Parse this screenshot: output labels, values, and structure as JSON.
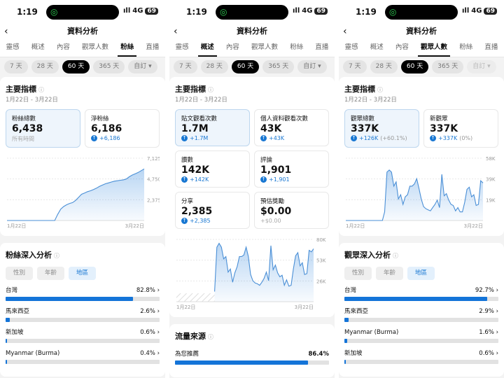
{
  "colors": {
    "accent": "#1474d8",
    "selected_card": "#eef5fc",
    "island_icon": "#2ecc52"
  },
  "panels": [
    {
      "status": {
        "time": "1:19",
        "network": "4G",
        "battery": "69"
      },
      "header": {
        "title": "資料分析",
        "back_icon": "chevron-left-icon"
      },
      "tabs": [
        "靈感",
        "概述",
        "內容",
        "觀眾人數",
        "粉絲",
        "直播"
      ],
      "active_tab": 4,
      "ranges": [
        "7 天",
        "28 天",
        "60 天",
        "365 天",
        "自訂 ▾"
      ],
      "active_range": 2,
      "custom_disabled": false,
      "metrics": {
        "title": "主要指標",
        "date": "1月22日 - 3月22日",
        "cards": [
          {
            "label": "粉絲總數",
            "value": "6,438",
            "note": "所有時間",
            "selected": true
          },
          {
            "label": "淨粉絲",
            "value": "6,186",
            "change": "+6,186"
          }
        ]
      },
      "chart_index": 0,
      "second": {
        "title": "粉絲深入分析",
        "filters": [
          "性別",
          "年齡",
          "地區"
        ],
        "active_filter": 2,
        "rows": [
          {
            "label": "台灣",
            "pct": "82.8%",
            "value": 82.8
          },
          {
            "label": "馬來西亞",
            "pct": "2.6%",
            "value": 2.6
          },
          {
            "label": "新加坡",
            "pct": "0.6%",
            "value": 0.6
          },
          {
            "label": "Myanmar (Burma)",
            "pct": "0.4%",
            "value": 0.4
          }
        ],
        "chevrons": true
      }
    },
    {
      "status": {
        "time": "1:19",
        "network": "4G",
        "battery": "69"
      },
      "header": {
        "title": "資料分析",
        "back_icon": "chevron-left-icon"
      },
      "tabs": [
        "靈感",
        "概述",
        "內容",
        "觀眾人數",
        "粉絲",
        "直播"
      ],
      "active_tab": 1,
      "ranges": [
        "7 天",
        "28 天",
        "60 天",
        "365 天",
        "自訂 ▾"
      ],
      "active_range": 2,
      "custom_disabled": false,
      "metrics": {
        "title": "主要指標",
        "date": "1月22日 - 3月22日",
        "cards": [
          {
            "label": "貼文觀看次數",
            "value": "1.7M",
            "change": "+1.7M",
            "selected": true
          },
          {
            "label": "個人資料觀看次數",
            "value": "43K",
            "change": "+43K"
          },
          {
            "label": "讚數",
            "value": "142K",
            "change": "+142K"
          },
          {
            "label": "評論",
            "value": "1,901",
            "change": "+1,901"
          },
          {
            "label": "分享",
            "value": "2,385",
            "change": "+2,385"
          },
          {
            "label": "預估獎勵",
            "value": "$0.00",
            "change": "+$0.00",
            "grey": true
          }
        ]
      },
      "chart_index": 1,
      "second": {
        "title": "流量來源",
        "filters": [],
        "rows": [
          {
            "label": "為您推薦",
            "pct": "86.4%",
            "value": 86.4
          }
        ],
        "chevrons": false
      }
    },
    {
      "status": {
        "time": "1:19",
        "network": "4G",
        "battery": "69"
      },
      "header": {
        "title": "資料分析",
        "back_icon": "chevron-left-icon"
      },
      "tabs": [
        "靈感",
        "概述",
        "內容",
        "觀眾人數",
        "粉絲",
        "直播"
      ],
      "active_tab": 3,
      "ranges": [
        "7 天",
        "28 天",
        "60 天",
        "365 天",
        "自訂 ▾"
      ],
      "active_range": 2,
      "custom_disabled": true,
      "metrics": {
        "title": "主要指標",
        "date": "1月22日 - 3月22日",
        "cards": [
          {
            "label": "觀眾總數",
            "value": "337K",
            "change": "+126K",
            "change_pct": "(+60.1%)",
            "selected": true
          },
          {
            "label": "新觀眾",
            "value": "337K",
            "change": "+337K",
            "change_pct": "(0%)"
          }
        ]
      },
      "chart_index": 2,
      "second": {
        "title": "觀眾深入分析",
        "filters": [
          "性別",
          "年齡",
          "地區"
        ],
        "active_filter": 2,
        "rows": [
          {
            "label": "台灣",
            "pct": "92.7%",
            "value": 92.7
          },
          {
            "label": "馬來西亞",
            "pct": "2.9%",
            "value": 2.9
          },
          {
            "label": "Myanmar (Burma)",
            "pct": "1.6%",
            "value": 1.6
          },
          {
            "label": "新加坡",
            "pct": "0.6%",
            "value": 0.6
          }
        ],
        "chevrons": true
      }
    }
  ],
  "chart_data": [
    {
      "type": "area",
      "x_labels": [
        "1月22日",
        "3月22日"
      ],
      "y_ticks": [
        "7,125",
        "4,750",
        "2,375"
      ],
      "ylim": [
        0,
        7125
      ],
      "grid": true,
      "values": [
        0,
        0,
        0,
        0,
        0,
        0,
        0,
        0,
        0,
        0,
        0,
        0,
        0,
        0,
        0,
        0,
        0,
        700,
        1300,
        1600,
        1800,
        1950,
        2050,
        2300,
        2650,
        3000,
        3150,
        3300,
        3400,
        3550,
        3700,
        3900,
        4050,
        4200,
        4300,
        4400,
        4500,
        4550,
        4600,
        4650,
        4750,
        5000,
        5200,
        5350,
        5500,
        5700,
        5900
      ]
    },
    {
      "type": "area",
      "x_labels": [
        "1月22日",
        "3月22日"
      ],
      "y_ticks": [
        "80K",
        "53K",
        "26K"
      ],
      "ylim": [
        0,
        80
      ],
      "grid": true,
      "no_data_hatched": true,
      "values": [
        null,
        null,
        null,
        null,
        null,
        null,
        null,
        null,
        null,
        null,
        null,
        null,
        null,
        null,
        null,
        null,
        null,
        13,
        70,
        75,
        70,
        55,
        58,
        38,
        42,
        25,
        37,
        45,
        58,
        58,
        60,
        70,
        58,
        35,
        27,
        24,
        23,
        21,
        25,
        30,
        38,
        27,
        72,
        41,
        47,
        37,
        32,
        34,
        21,
        28,
        20,
        21,
        42,
        59,
        63,
        46,
        50,
        35,
        36,
        66,
        64,
        68
      ]
    },
    {
      "type": "area",
      "x_labels": [
        "1月22日",
        "3月22日"
      ],
      "y_ticks": [
        "58K",
        "39K",
        "19K"
      ],
      "ylim": [
        0,
        58
      ],
      "grid": true,
      "values": [
        0,
        0,
        0,
        0,
        0,
        0,
        0,
        0,
        0,
        0,
        0,
        0,
        0,
        0,
        0,
        0,
        0,
        8,
        45,
        47,
        45,
        32,
        36,
        20,
        24,
        15,
        22,
        24,
        32,
        32,
        34,
        39,
        30,
        20,
        13,
        11,
        10,
        9,
        12,
        15,
        19,
        12,
        43,
        23,
        25,
        19,
        15,
        14,
        9,
        12,
        8,
        8,
        17,
        29,
        31,
        22,
        24,
        14,
        15,
        37,
        35
      ]
    }
  ]
}
